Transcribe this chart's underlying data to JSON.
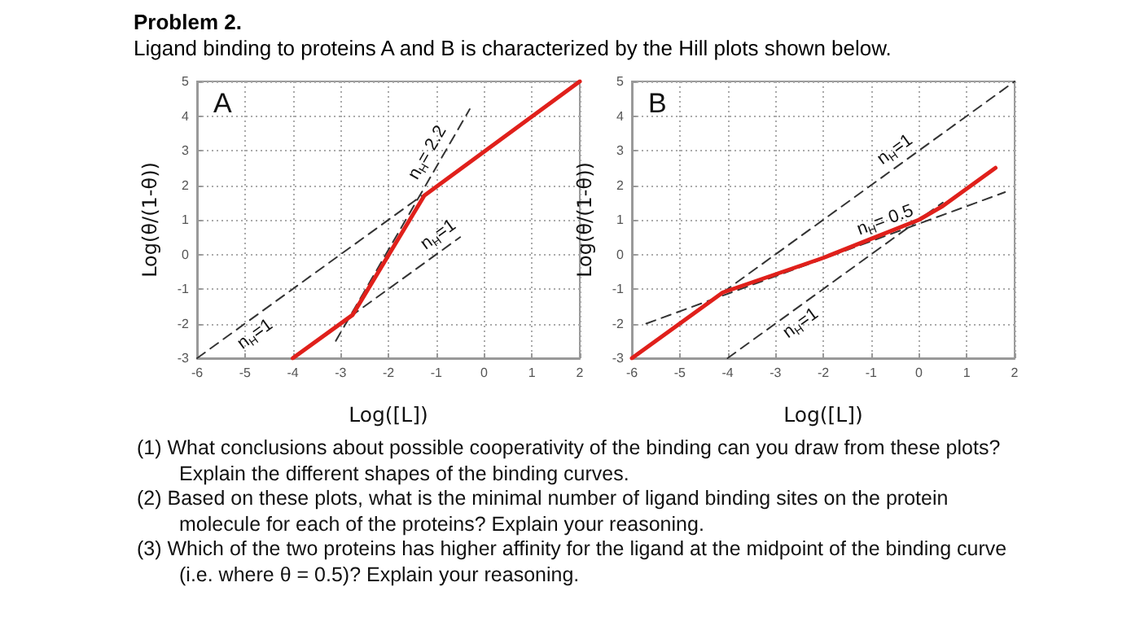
{
  "chart_data": [
    {
      "type": "line",
      "title": "A",
      "xlabel": "Log([L])",
      "ylabel": "Log(θ/(1-θ))",
      "xlim": [
        -6,
        2
      ],
      "xticks": [
        -6,
        -5,
        -4,
        -3,
        -2,
        -1,
        0,
        1,
        2
      ],
      "ylim": [
        -3,
        5
      ],
      "yticks": [
        -3,
        -2,
        -1,
        0,
        1,
        2,
        3,
        4,
        5
      ],
      "grid": true,
      "marker": "none",
      "annotations": [
        "Problem 2.",
        "Ligand binding to proteins A and B is characterized by the Hill plots shown below."
      ],
      "series": [
        {
          "color": "#e0201b",
          "x": [
            -4,
            -2.75,
            -1.25,
            2
          ],
          "values": [
            -3,
            -1.75,
            1.7,
            5
          ]
        },
        {
          "name": "n$_{H}$=1",
          "color": "#333333",
          "line_style": "dashed",
          "x": [
            -6,
            -1.3
          ],
          "values": [
            -3,
            1.7
          ]
        },
        {
          "name": "n$_{H}$= 2.2",
          "color": "#333333",
          "line_style": "dashed",
          "x": [
            -3.1,
            -0.3
          ],
          "values": [
            -2.5,
            4.2
          ]
        },
        {
          "name": "n$_{H}$=1",
          "color": "#333333",
          "line_style": "dashed",
          "x": [
            -2.8,
            -0.5
          ],
          "values": [
            -1.8,
            0.5
          ]
        }
      ]
    },
    {
      "type": "line",
      "title": "B",
      "xlabel": "Log([L])",
      "ylabel": "Log(θ/(1-θ))",
      "xlim": [
        -6,
        2
      ],
      "xticks": [
        -6,
        -5,
        -4,
        -3,
        -2,
        -1,
        0,
        1,
        2
      ],
      "ylim": [
        -3,
        5
      ],
      "yticks": [
        -3,
        -2,
        -1,
        0,
        1,
        2,
        3,
        4,
        5
      ],
      "grid": true,
      "marker": "none",
      "annotations": [
        "(1) What conclusions about possible cooperativity of the binding can you draw from these plots? Explain the different shapes of the binding curves.",
        "(2) Based on these plots, what is the minimal number of ligand binding sites on the protein molecule for each of the proteins? Explain your reasoning.",
        "(3) Which of the two proteins has higher affinity for the ligand at the midpoint of the binding curve (i.e. where θ = 0.5)? Explain your reasoning."
      ],
      "series": [
        {
          "color": "#e0201b",
          "x": [
            -6,
            -5,
            -4.1,
            -2,
            -1,
            0,
            0.5,
            1.6
          ],
          "values": [
            -3,
            -2,
            -1.1,
            -0.1,
            0.45,
            1,
            1.4,
            2.5
          ]
        },
        {
          "name": "n$_{H}$=1",
          "color": "#333333",
          "line_style": "dashed",
          "x": [
            -4.1,
            2
          ],
          "values": [
            -1.1,
            5
          ]
        },
        {
          "name": "n$_{H}$= 0.5",
          "color": "#333333",
          "line_style": "dashed",
          "x": [
            -5.7,
            1.8
          ],
          "values": [
            -2,
            1.8
          ]
        },
        {
          "name": "n$_{H}$=1",
          "color": "#333333",
          "line_style": "dashed",
          "x": [
            -4,
            0.5
          ],
          "values": [
            -3,
            1.5
          ]
        }
      ]
    }
  ]
}
